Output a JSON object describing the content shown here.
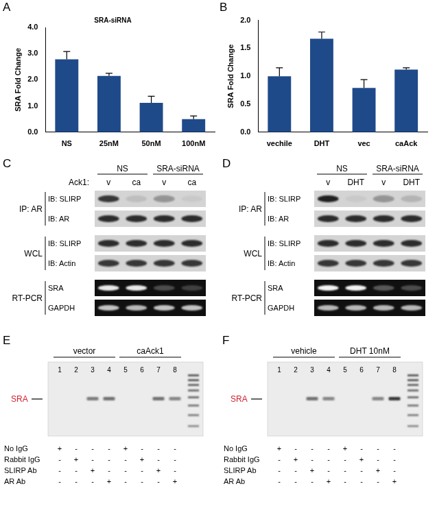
{
  "chart_data": [
    {
      "panel": "A",
      "type": "bar",
      "title": "SRA-siRNA",
      "categories": [
        "NS",
        "25nM",
        "50nM",
        "100nM"
      ],
      "values": [
        2.78,
        2.15,
        1.12,
        0.5
      ],
      "errors": [
        0.3,
        0.1,
        0.25,
        0.12
      ],
      "color": "#1f4a8a",
      "y_label": "SRA Fold Change",
      "ylim": [
        0,
        4
      ],
      "yticks": [
        {
          "value": 0,
          "label": "0.0"
        },
        {
          "value": 1,
          "label": "1.0"
        },
        {
          "value": 2,
          "label": "2.0"
        },
        {
          "value": 3,
          "label": "3.0"
        },
        {
          "value": 4,
          "label": "4.0"
        }
      ],
      "grid": false
    },
    {
      "panel": "B",
      "type": "bar",
      "categories": [
        "vechile",
        "DHT",
        "vec",
        "caAck"
      ],
      "values": [
        1.0,
        1.67,
        0.79,
        1.12
      ],
      "errors": [
        0.15,
        0.12,
        0.15,
        0.03
      ],
      "color": "#1f4a8a",
      "y_label": "SRA Fold Change",
      "ylim": [
        0,
        2
      ],
      "yticks": [
        {
          "value": 0,
          "label": "0.0"
        },
        {
          "value": 0.5,
          "label": "0.5"
        },
        {
          "value": 1,
          "label": "1.0"
        },
        {
          "value": 1.5,
          "label": "1.5"
        },
        {
          "value": 2,
          "label": "2.0"
        }
      ],
      "grid": false
    }
  ],
  "blots": [
    {
      "panel": "C",
      "lane_title": "Ack1:",
      "headers": [
        {
          "text": "NS",
          "lanes": 2
        },
        {
          "text": "SRA-siRNA",
          "lanes": 2
        }
      ],
      "lanes": [
        "v",
        "ca",
        "v",
        "ca"
      ],
      "groups": [
        {
          "label": "IP: AR",
          "kind": "western",
          "rows": [
            {
              "label": "IB: SLIRP",
              "bands": [
                0.8,
                0.1,
                0.35,
                0.05
              ]
            },
            {
              "label": "IB: AR",
              "bands": [
                0.85,
                0.85,
                0.85,
                0.85
              ]
            }
          ]
        },
        {
          "label": "WCL",
          "kind": "western",
          "rows": [
            {
              "label": "IB: SLIRP",
              "bands": [
                0.85,
                0.85,
                0.85,
                0.85
              ]
            },
            {
              "label": "IB: Actin",
              "bands": [
                0.8,
                0.8,
                0.8,
                0.8
              ]
            }
          ]
        },
        {
          "label": "RT-PCR",
          "kind": "pcr",
          "rows": [
            {
              "label": "SRA",
              "bands": [
                0.9,
                0.9,
                0.25,
                0.2
              ]
            },
            {
              "label": "GAPDH",
              "bands": [
                0.75,
                0.7,
                0.75,
                0.75
              ]
            }
          ]
        }
      ]
    },
    {
      "panel": "D",
      "headers": [
        {
          "text": "NS",
          "lanes": 2
        },
        {
          "text": "SRA-siRNA",
          "lanes": 2
        }
      ],
      "lanes": [
        "v",
        "DHT",
        "v",
        "DHT"
      ],
      "groups": [
        {
          "label": "IP: AR",
          "kind": "western",
          "rows": [
            {
              "label": "IB: SLIRP",
              "bands": [
                0.9,
                0.05,
                0.35,
                0.15
              ]
            },
            {
              "label": "IB: AR",
              "bands": [
                0.85,
                0.85,
                0.85,
                0.85
              ]
            }
          ]
        },
        {
          "label": "WCL",
          "kind": "western",
          "rows": [
            {
              "label": "IB: SLIRP",
              "bands": [
                0.85,
                0.85,
                0.85,
                0.85
              ]
            },
            {
              "label": "IB: Actin",
              "bands": [
                0.8,
                0.8,
                0.8,
                0.8
              ]
            }
          ]
        },
        {
          "label": "RT-PCR",
          "kind": "pcr",
          "rows": [
            {
              "label": "SRA",
              "bands": [
                0.95,
                0.95,
                0.3,
                0.25
              ]
            },
            {
              "label": "GAPDH",
              "bands": [
                0.7,
                0.7,
                0.7,
                0.7
              ]
            }
          ]
        }
      ]
    }
  ],
  "gels": [
    {
      "panel": "E",
      "headers": [
        {
          "text": "vector",
          "lanes": 4
        },
        {
          "text": "caAck1",
          "lanes": 4
        }
      ],
      "lane_numbers": [
        1,
        2,
        3,
        4,
        5,
        6,
        7,
        8
      ],
      "band_label": "SRA",
      "band_label_color": "#d0202f",
      "bands": [
        0,
        0,
        0.55,
        0.6,
        0,
        0,
        0.6,
        0.5
      ],
      "conditions": [
        {
          "label": "No IgG",
          "marks": [
            "+",
            "-",
            "-",
            "-",
            "+",
            "-",
            "-",
            "-"
          ]
        },
        {
          "label": "Rabbit IgG",
          "marks": [
            "-",
            "+",
            "-",
            "-",
            "-",
            "+",
            "-",
            "-"
          ]
        },
        {
          "label": "SLIRP Ab",
          "marks": [
            "-",
            "-",
            "+",
            "-",
            "-",
            "-",
            "+",
            "-"
          ]
        },
        {
          "label": "AR Ab",
          "marks": [
            "-",
            "-",
            "-",
            "+",
            "-",
            "-",
            "-",
            "+"
          ]
        }
      ]
    },
    {
      "panel": "F",
      "headers": [
        {
          "text": "vehicle",
          "lanes": 4
        },
        {
          "text": "DHT 10nM",
          "lanes": 4
        }
      ],
      "lane_numbers": [
        1,
        2,
        3,
        4,
        5,
        6,
        7,
        8
      ],
      "band_label": "SRA",
      "band_label_color": "#d0202f",
      "bands": [
        0,
        0,
        0.6,
        0.5,
        0,
        0,
        0.5,
        0.9
      ],
      "conditions": [
        {
          "label": "No IgG",
          "marks": [
            "+",
            "-",
            "-",
            "-",
            "+",
            "-",
            "-",
            "-"
          ]
        },
        {
          "label": "Rabbit IgG",
          "marks": [
            "-",
            "+",
            "-",
            "-",
            "-",
            "+",
            "-",
            "-"
          ]
        },
        {
          "label": "SLIRP Ab",
          "marks": [
            "-",
            "-",
            "+",
            "-",
            "-",
            "-",
            "+",
            "-"
          ]
        },
        {
          "label": "AR Ab",
          "marks": [
            "-",
            "-",
            "-",
            "+",
            "-",
            "-",
            "-",
            "+"
          ]
        }
      ]
    }
  ]
}
